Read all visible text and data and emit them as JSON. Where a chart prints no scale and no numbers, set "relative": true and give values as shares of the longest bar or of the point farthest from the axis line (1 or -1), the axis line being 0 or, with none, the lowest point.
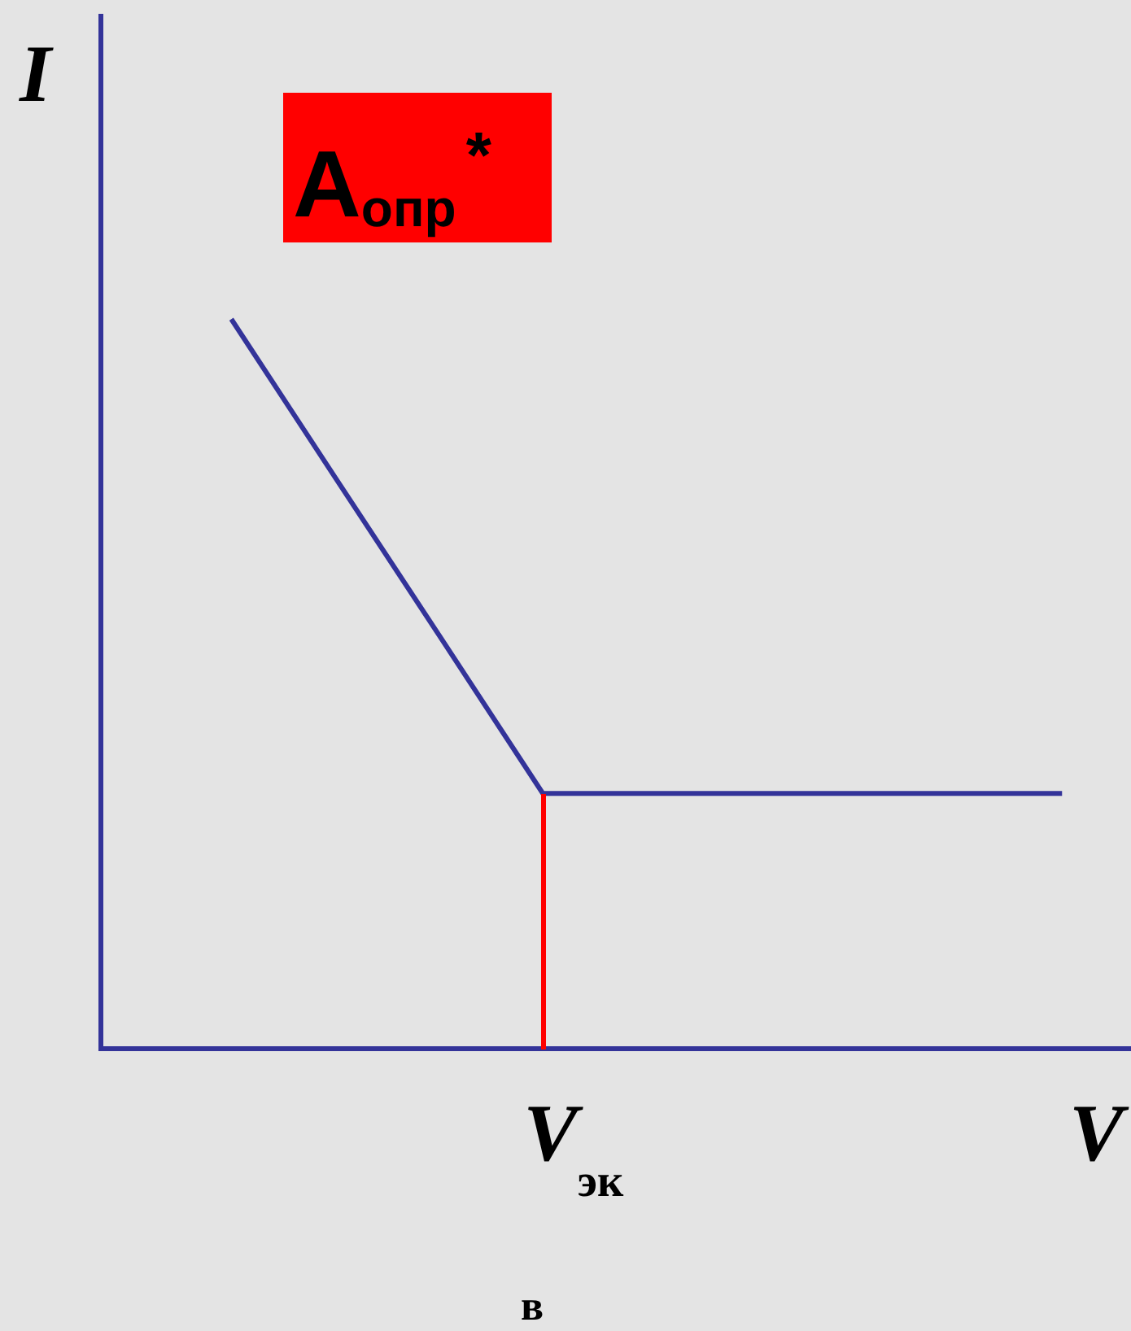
{
  "chart_data": {
    "type": "line",
    "title": "А$_{опр}$$^{*}$",
    "xlabel": "V",
    "ylabel": "I",
    "relative": true,
    "marker": "none",
    "grid": false,
    "legend": false,
    "line_style": "solid",
    "annotations": [
      "V$_{эк}$",
      "в"
    ],
    "categories": [
      null,
      null,
      null,
      null,
      null,
      null,
      null,
      null,
      null
    ],
    "series": [
      {
        "color": "#333399",
        "values": [
          1,
          0.783,
          0.567,
          0.35,
          0.35,
          0.35,
          0.35,
          0.35,
          0.35
        ]
      }
    ]
  }
}
